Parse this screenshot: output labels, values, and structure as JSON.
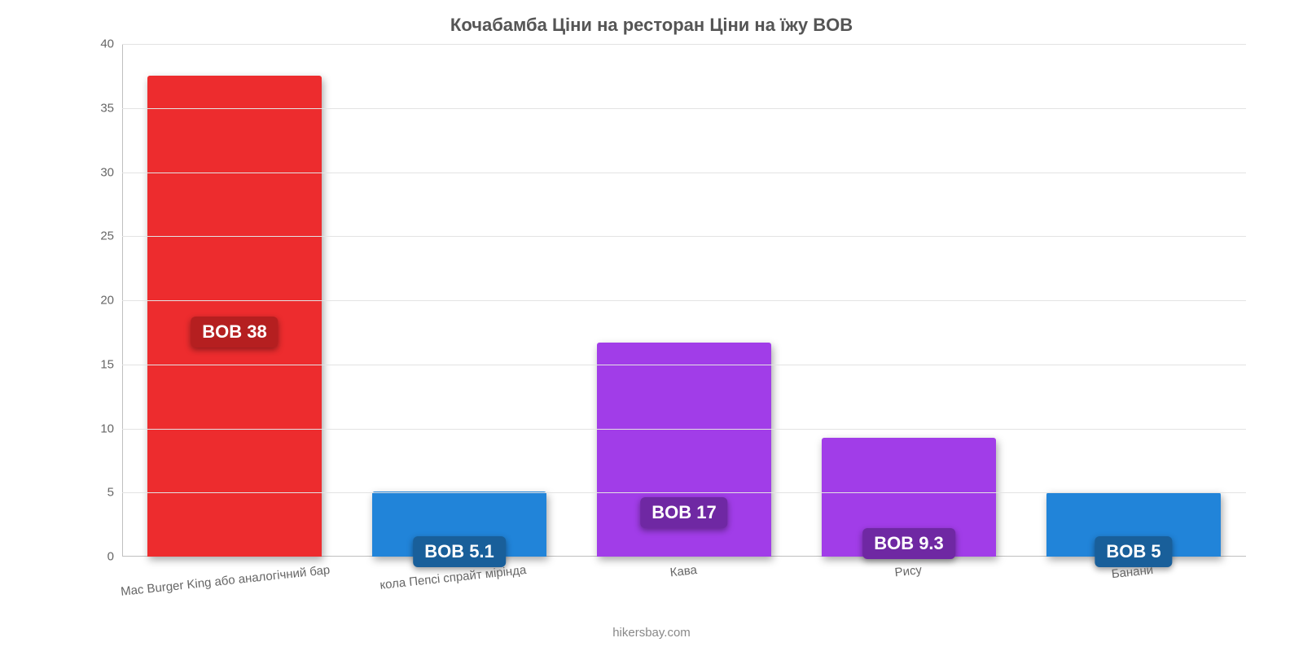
{
  "chart": {
    "type": "bar",
    "title": "Кочабамба Ціни на ресторан Ціни на їжу BOB",
    "title_fontsize": 22,
    "title_color": "#555555",
    "background_color": "#ffffff",
    "grid_color": "#e3e3e3",
    "axis_color": "#bfbfbf",
    "tick_label_color": "#666666",
    "footer": "hikersbay.com",
    "footer_color": "#888888",
    "ylim": [
      0,
      40
    ],
    "yticks": [
      0,
      5,
      10,
      15,
      20,
      25,
      30,
      35,
      40
    ],
    "label_fontsize": 15,
    "badge_fontsize": 22,
    "bar_width_pct": 15.5,
    "bar_gap_pct": 4.5,
    "categories": [
      "Mac Burger King або аналогічний бар",
      "кола Пепсі спрайт мірінда",
      "Кава",
      "Рису",
      "Банани"
    ],
    "values": [
      37.5,
      5.1,
      16.7,
      9.3,
      5.0
    ],
    "bar_colors": [
      "#ed2c2e",
      "#2184d9",
      "#a13de8",
      "#a13de8",
      "#2184d9"
    ],
    "badge_labels": [
      "BOB 38",
      "BOB 5.1",
      "BOB 17",
      "BOB 9.3",
      "BOB 5"
    ],
    "badge_colors": [
      "#b51f20",
      "#195f9a",
      "#6f28a3",
      "#6f28a3",
      "#195f9a"
    ],
    "x_label_rotate_deg": -6
  }
}
